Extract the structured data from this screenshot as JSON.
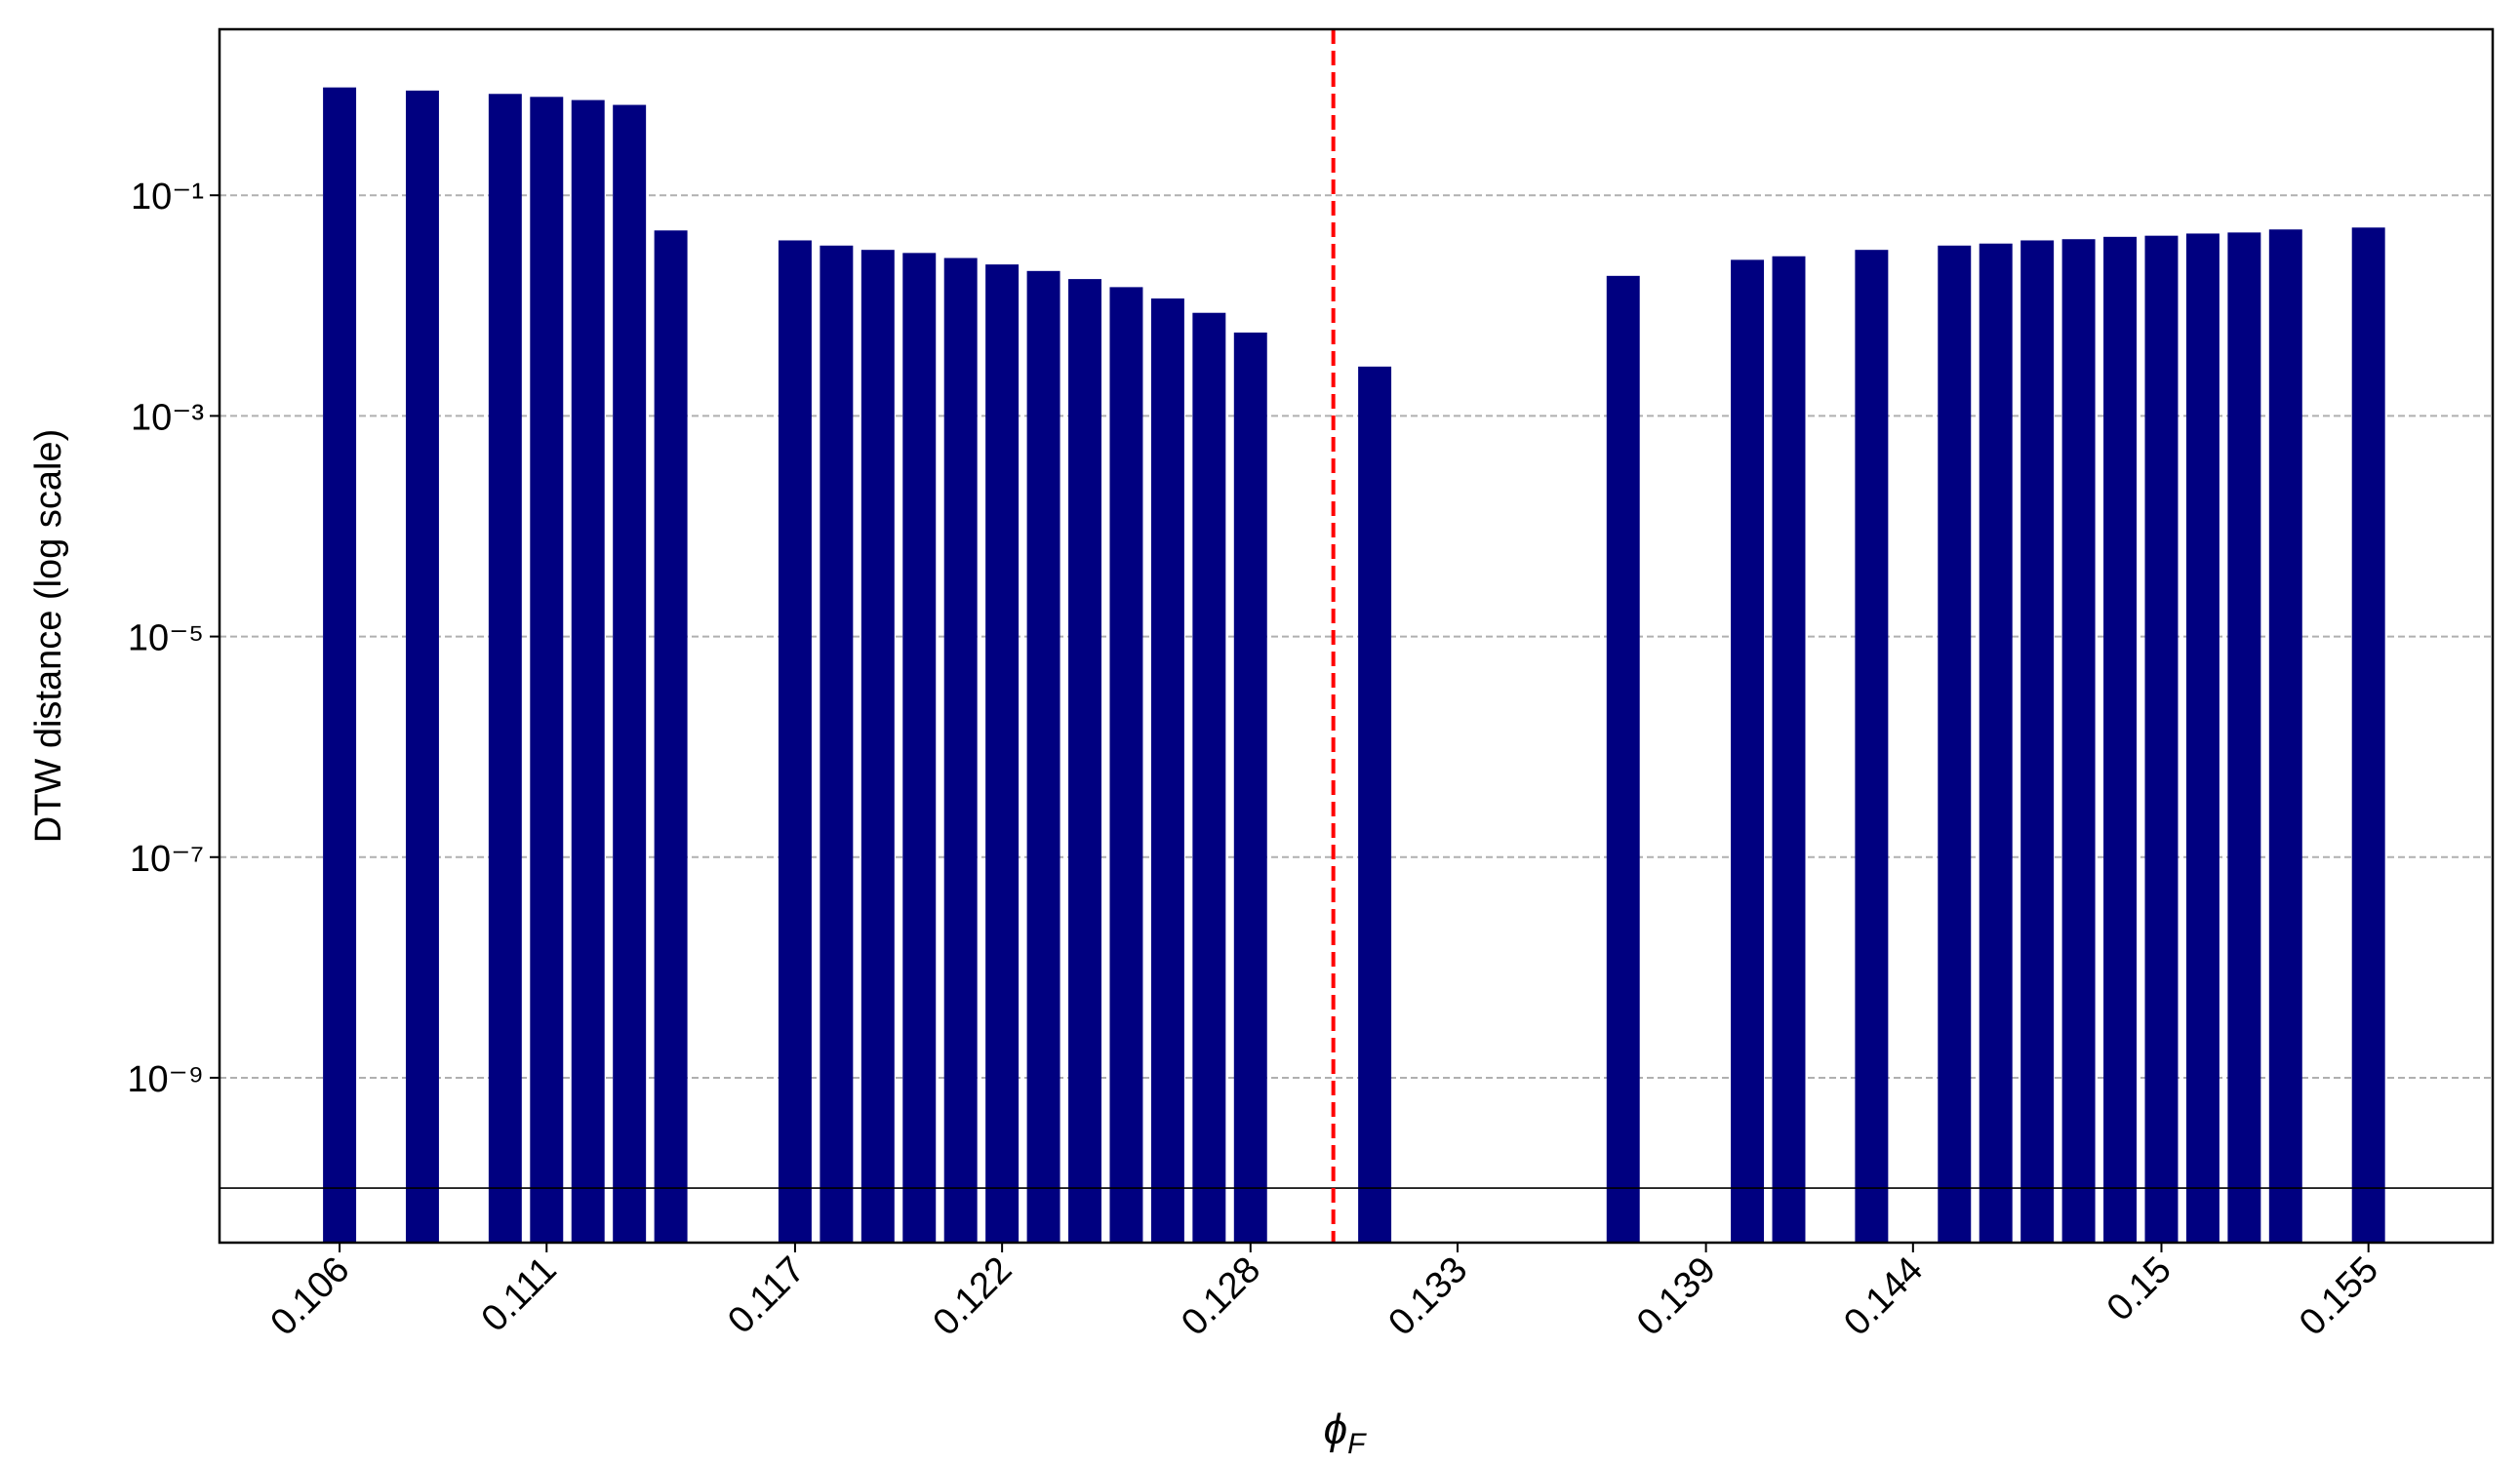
{
  "chart_data": {
    "type": "bar",
    "ylabel": "DTW distance (log scale)",
    "xlabel": "ϕ",
    "xlabel_sub": "F",
    "x": [
      0.106,
      0.108,
      0.11,
      0.111,
      0.112,
      0.113,
      0.114,
      0.117,
      0.118,
      0.119,
      0.12,
      0.121,
      0.122,
      0.123,
      0.124,
      0.125,
      0.126,
      0.127,
      0.128,
      0.131,
      0.137,
      0.14,
      0.141,
      0.143,
      0.145,
      0.146,
      0.147,
      0.148,
      0.149,
      0.15,
      0.151,
      0.152,
      0.153,
      0.155
    ],
    "values": [
      0.95,
      0.89,
      0.83,
      0.78,
      0.73,
      0.66,
      0.048,
      0.039,
      0.035,
      0.032,
      0.03,
      0.027,
      0.0236,
      0.0206,
      0.0174,
      0.0147,
      0.0116,
      0.0086,
      0.0057,
      0.0028,
      0.0186,
      0.026,
      0.028,
      0.032,
      0.035,
      0.0365,
      0.039,
      0.04,
      0.042,
      0.043,
      0.045,
      0.046,
      0.049,
      0.051
    ],
    "color": "#000080",
    "xlim": [
      0.1031,
      0.158
    ],
    "xticks": [
      0.106,
      0.111,
      0.117,
      0.122,
      0.128,
      0.133,
      0.139,
      0.144,
      0.15,
      0.155
    ],
    "ylim": [
      3.2e-11,
      3.2
    ],
    "yticks": [
      {
        "value": 1e-09,
        "label": "10⁻⁹"
      },
      {
        "value": 1e-07,
        "label": "10⁻⁷"
      },
      {
        "value": 1e-05,
        "label": "10⁻⁵"
      },
      {
        "value": 0.001,
        "label": "10⁻³"
      },
      {
        "value": 0.1,
        "label": "10⁻¹"
      }
    ],
    "log_y": true,
    "grid": true,
    "vline": {
      "x": 0.13,
      "color": "#ff0000"
    },
    "hline": {
      "y": 1e-10,
      "color": "#000000"
    }
  }
}
